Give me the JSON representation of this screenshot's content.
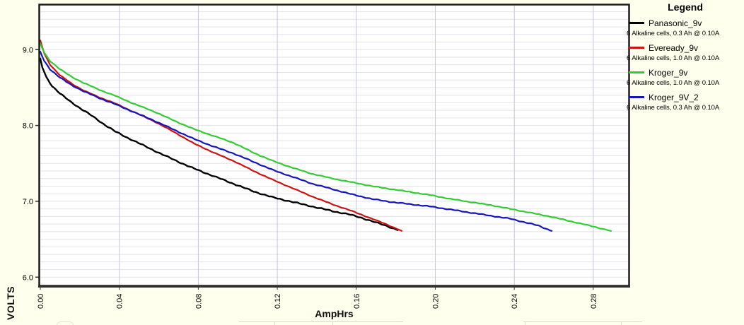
{
  "window": {
    "background": "#FFFFEE"
  },
  "chart_data": {
    "type": "line",
    "title": "",
    "xlabel": "AmpHrs",
    "ylabel": "VOLTS",
    "legend_title": "Legend",
    "legend_position": "right",
    "xlim": [
      0,
      0.2976
    ],
    "ylim": [
      5.9,
      9.58
    ],
    "plot_background": "#FFFFFF",
    "border_color": "#1a1a1a",
    "x_ticks": [
      {
        "value": 0.0,
        "label": "0.00"
      },
      {
        "value": 0.04,
        "label": "0.04"
      },
      {
        "value": 0.08,
        "label": "0.08"
      },
      {
        "value": 0.12,
        "label": "0.12"
      },
      {
        "value": 0.16,
        "label": "0.16"
      },
      {
        "value": 0.2,
        "label": "0.20"
      },
      {
        "value": 0.24,
        "label": "0.24"
      },
      {
        "value": 0.28,
        "label": "0.28"
      }
    ],
    "y_ticks": [
      {
        "value": 9.0,
        "label": "9.0"
      },
      {
        "value": 8.0,
        "label": "8.0"
      },
      {
        "value": 7.0,
        "label": "7.0"
      },
      {
        "value": 6.0,
        "label": "6.0"
      }
    ],
    "grid": {
      "h_from": 6.0,
      "h_to": 9.5,
      "h_step": 0.1,
      "h_color": "#E2E2EA",
      "v_at": [
        0.04,
        0.08,
        0.12,
        0.16,
        0.2,
        0.24,
        0.28
      ],
      "v_color": "#C4C4E2"
    },
    "series": [
      {
        "name": "Panasonic_9v",
        "caption": "6 Alkaline cells, 0.3 Ah @ 0.10A",
        "color": "#000000",
        "noise": 0.9,
        "points": [
          [
            0,
            8.88
          ],
          [
            0.001,
            8.77
          ],
          [
            0.003,
            8.64
          ],
          [
            0.006,
            8.52
          ],
          [
            0.01,
            8.42
          ],
          [
            0.015,
            8.32
          ],
          [
            0.02,
            8.23
          ],
          [
            0.026,
            8.13
          ],
          [
            0.032,
            8.02
          ],
          [
            0.038,
            7.92
          ],
          [
            0.044,
            7.84
          ],
          [
            0.052,
            7.74
          ],
          [
            0.06,
            7.64
          ],
          [
            0.07,
            7.52
          ],
          [
            0.078,
            7.43
          ],
          [
            0.088,
            7.33
          ],
          [
            0.098,
            7.23
          ],
          [
            0.108,
            7.13
          ],
          [
            0.118,
            7.05
          ],
          [
            0.128,
            6.99
          ],
          [
            0.138,
            6.93
          ],
          [
            0.148,
            6.87
          ],
          [
            0.156,
            6.83
          ],
          [
            0.163,
            6.78
          ],
          [
            0.17,
            6.72
          ],
          [
            0.176,
            6.67
          ],
          [
            0.181,
            6.62
          ]
        ]
      },
      {
        "name": "Eveready_9v",
        "caption": "6 Alkaline cells, 1.0 Ah @ 0.10A",
        "color": "#CE1212",
        "noise": 0.5,
        "points": [
          [
            0,
            9.12
          ],
          [
            0.002,
            8.95
          ],
          [
            0.005,
            8.8
          ],
          [
            0.01,
            8.66
          ],
          [
            0.016,
            8.55
          ],
          [
            0.022,
            8.46
          ],
          [
            0.03,
            8.37
          ],
          [
            0.038,
            8.29
          ],
          [
            0.048,
            8.17
          ],
          [
            0.058,
            8.05
          ],
          [
            0.068,
            7.91
          ],
          [
            0.078,
            7.76
          ],
          [
            0.088,
            7.64
          ],
          [
            0.098,
            7.53
          ],
          [
            0.108,
            7.4
          ],
          [
            0.118,
            7.28
          ],
          [
            0.128,
            7.17
          ],
          [
            0.138,
            7.06
          ],
          [
            0.148,
            6.96
          ],
          [
            0.158,
            6.87
          ],
          [
            0.166,
            6.79
          ],
          [
            0.174,
            6.71
          ],
          [
            0.183,
            6.61
          ]
        ]
      },
      {
        "name": "Kroger_9v",
        "caption": "6 Alkaline cells, 1.0 Ah @ 0.10A",
        "color": "#33CC33",
        "noise": 0.6,
        "points": [
          [
            0,
            9.08
          ],
          [
            0.002,
            8.96
          ],
          [
            0.005,
            8.85
          ],
          [
            0.01,
            8.74
          ],
          [
            0.016,
            8.64
          ],
          [
            0.022,
            8.56
          ],
          [
            0.03,
            8.47
          ],
          [
            0.038,
            8.39
          ],
          [
            0.048,
            8.28
          ],
          [
            0.058,
            8.18
          ],
          [
            0.068,
            8.06
          ],
          [
            0.078,
            7.95
          ],
          [
            0.088,
            7.86
          ],
          [
            0.098,
            7.77
          ],
          [
            0.108,
            7.64
          ],
          [
            0.118,
            7.53
          ],
          [
            0.128,
            7.44
          ],
          [
            0.138,
            7.36
          ],
          [
            0.148,
            7.3
          ],
          [
            0.158,
            7.25
          ],
          [
            0.168,
            7.2
          ],
          [
            0.178,
            7.16
          ],
          [
            0.188,
            7.12
          ],
          [
            0.198,
            7.08
          ],
          [
            0.208,
            7.03
          ],
          [
            0.218,
            6.99
          ],
          [
            0.228,
            6.95
          ],
          [
            0.238,
            6.9
          ],
          [
            0.248,
            6.85
          ],
          [
            0.258,
            6.8
          ],
          [
            0.268,
            6.74
          ],
          [
            0.278,
            6.68
          ],
          [
            0.289,
            6.61
          ]
        ]
      },
      {
        "name": "Kroger_9V_2",
        "caption": "6 Alkaline cells, 0.3 Ah @ 0.10A",
        "color": "#1515BE",
        "noise": 0.7,
        "points": [
          [
            0,
            8.97
          ],
          [
            0.002,
            8.85
          ],
          [
            0.005,
            8.74
          ],
          [
            0.01,
            8.63
          ],
          [
            0.016,
            8.53
          ],
          [
            0.022,
            8.45
          ],
          [
            0.03,
            8.36
          ],
          [
            0.038,
            8.28
          ],
          [
            0.048,
            8.17
          ],
          [
            0.058,
            8.06
          ],
          [
            0.068,
            7.94
          ],
          [
            0.078,
            7.82
          ],
          [
            0.088,
            7.72
          ],
          [
            0.098,
            7.63
          ],
          [
            0.108,
            7.52
          ],
          [
            0.118,
            7.41
          ],
          [
            0.128,
            7.32
          ],
          [
            0.138,
            7.23
          ],
          [
            0.148,
            7.16
          ],
          [
            0.158,
            7.09
          ],
          [
            0.168,
            7.03
          ],
          [
            0.178,
            6.99
          ],
          [
            0.188,
            6.96
          ],
          [
            0.198,
            6.93
          ],
          [
            0.208,
            6.89
          ],
          [
            0.218,
            6.85
          ],
          [
            0.228,
            6.81
          ],
          [
            0.238,
            6.77
          ],
          [
            0.246,
            6.72
          ],
          [
            0.252,
            6.68
          ],
          [
            0.259,
            6.61
          ]
        ]
      }
    ]
  }
}
